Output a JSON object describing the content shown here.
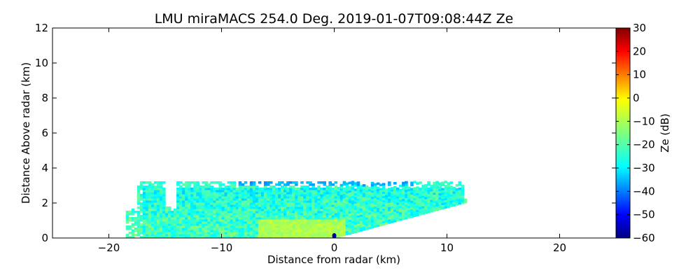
{
  "chart_data": {
    "type": "heatmap",
    "title": "LMU miraMACS 254.0 Deg. 2019-01-07T09:08:44Z  Ze",
    "xlabel": "Distance from radar (km)",
    "ylabel": "Distance Above radar  (km)",
    "xlim": [
      -25,
      25
    ],
    "ylim": [
      0,
      12
    ],
    "xticks": [
      -20,
      -10,
      0,
      10,
      20
    ],
    "xtick_labels": [
      "−20",
      "−10",
      "0",
      "10",
      "20"
    ],
    "yticks": [
      0,
      2,
      4,
      6,
      8,
      10,
      12
    ],
    "ytick_labels": [
      "0",
      "2",
      "4",
      "6",
      "8",
      "10",
      "12"
    ],
    "grid": false,
    "colorbar": {
      "label": "Ze (dB)",
      "range": [
        -60,
        30
      ],
      "ticks": [
        -60,
        -50,
        -40,
        -30,
        -20,
        -10,
        0,
        10,
        20,
        30
      ],
      "tick_labels": [
        "−60",
        "−50",
        "−40",
        "−30",
        "−20",
        "−10",
        "0",
        "10",
        "20",
        "30"
      ],
      "colormap": "jet",
      "colors": [
        "#00007f",
        "#0000ff",
        "#007fff",
        "#00ffff",
        "#7fff7f",
        "#ffff00",
        "#ff7f00",
        "#ff0000",
        "#7f0000"
      ]
    },
    "echo": {
      "description_values_dB": "mostly -30 to -10 dB in a shallow layer",
      "regions": [
        {
          "x": [
            -18.5,
            12.2
          ],
          "y_top": 1.7,
          "y_bottom": 0.0,
          "value_dB": -22
        },
        {
          "x": [
            -14,
            11.5
          ],
          "y_top": 3.2,
          "y_bottom": 1.3,
          "value_dB": -20
        },
        {
          "x": [
            -17,
            -15
          ],
          "y_top": 3.3,
          "y_bottom": 2.2,
          "value_dB": -24
        },
        {
          "x": [
            -9,
            7
          ],
          "y_top": 3.15,
          "y_bottom": 2.95,
          "value_dB": -42
        },
        {
          "x": [
            -6,
            0
          ],
          "y_top": 1.0,
          "y_bottom": 0.1,
          "value_dB": -12
        },
        {
          "x": [
            -0.2,
            0.2
          ],
          "y_top": 0.25,
          "y_bottom": 0.0,
          "value_dB": -55
        }
      ]
    }
  }
}
